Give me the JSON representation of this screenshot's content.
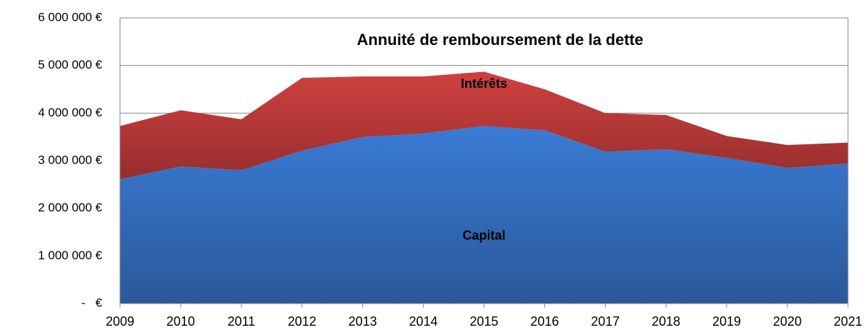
{
  "chart_data": {
    "type": "stacked_area",
    "title": "Annuité de remboursement de la dette",
    "categories": [
      "2009",
      "2010",
      "2011",
      "2012",
      "2013",
      "2014",
      "2015",
      "2016",
      "2017",
      "2018",
      "2019",
      "2020",
      "2021"
    ],
    "series": [
      {
        "name": "Capital",
        "color": "#3a7bd5",
        "values": [
          2610000,
          2880000,
          2800000,
          3210000,
          3500000,
          3570000,
          3730000,
          3640000,
          3190000,
          3240000,
          3060000,
          2850000,
          2940000
        ]
      },
      {
        "name": "Intérêts",
        "color": "#d04040",
        "values": [
          1120000,
          1180000,
          1070000,
          1530000,
          1270000,
          1200000,
          1140000,
          860000,
          810000,
          720000,
          460000,
          480000,
          440000
        ]
      }
    ],
    "ylim": [
      0,
      6000000
    ],
    "yticks": [
      {
        "value": 0,
        "label": "-   €"
      },
      {
        "value": 1000000,
        "label": "1 000 000 €"
      },
      {
        "value": 2000000,
        "label": "2 000 000 €"
      },
      {
        "value": 3000000,
        "label": "3 000 000 €"
      },
      {
        "value": 4000000,
        "label": "4 000 000 €"
      },
      {
        "value": 5000000,
        "label": "5 000 000 €"
      },
      {
        "value": 6000000,
        "label": "6 000 000 €"
      }
    ],
    "grid": true
  }
}
